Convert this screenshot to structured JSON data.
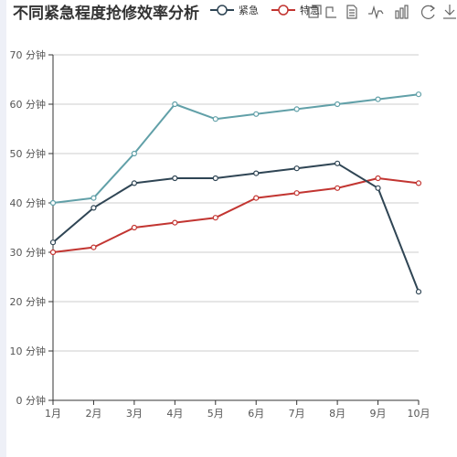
{
  "chart_data": {
    "type": "line",
    "title": "不同紧急程度抢修效率分析",
    "categories": [
      "1月",
      "2月",
      "3月",
      "4月",
      "5月",
      "6月",
      "7月",
      "8月",
      "9月",
      "10月"
    ],
    "ylim": [
      0,
      70
    ],
    "yticks": [
      0,
      10,
      20,
      30,
      40,
      50,
      60,
      70
    ],
    "ytick_labels": [
      "0 分钟",
      "10 分钟",
      "20 分钟",
      "30 分钟",
      "40 分钟",
      "50 分钟",
      "60 分钟",
      "70 分钟"
    ],
    "grid": true,
    "legend_position": "top",
    "series": [
      {
        "name": "紧急",
        "color": "#2f4554",
        "values": [
          32,
          39,
          44,
          45,
          45,
          46,
          47,
          48,
          43,
          22
        ]
      },
      {
        "name": "特急",
        "color": "#c23531",
        "values": [
          30,
          31,
          35,
          36,
          37,
          41,
          42,
          43,
          45,
          44
        ]
      },
      {
        "name": "",
        "color": "#61a0a8",
        "values": [
          40,
          41,
          50,
          60,
          57,
          58,
          59,
          60,
          61,
          62
        ]
      }
    ]
  },
  "toolbox": {
    "icons": [
      "save-as-image-icon",
      "restore-icon",
      "data-view-icon",
      "line-chart-icon",
      "bar-chart-icon",
      "refresh-icon",
      "download-icon"
    ]
  }
}
